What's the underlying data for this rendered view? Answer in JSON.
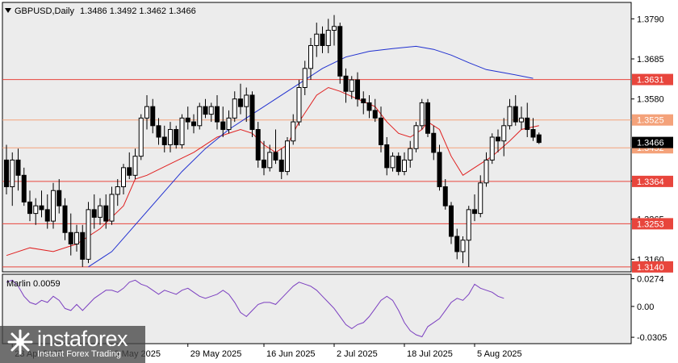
{
  "header": {
    "symbol": "GBPUSD,Daily",
    "ohlc": "1.3486 1.3492 1.3462 1.3466"
  },
  "indicator": {
    "label": "Marlin 0.0059"
  },
  "logo": {
    "name": "instaforex",
    "tagline": "Instant Forex Trading"
  },
  "colors": {
    "background": "#ffffff",
    "chart_bg": "#ececec",
    "candle": "#000000",
    "level_red": "#e8453c",
    "level_orange": "#f4a27a",
    "fast_ma": "#e02020",
    "slow_ma": "#2030d0",
    "oscillator": "#7b3fc0"
  },
  "chart_data": [
    {
      "type": "candlestick",
      "title": "GBPUSD,Daily",
      "ylim": [
        1.3127,
        1.3833
      ],
      "y_ticks": [
        {
          "value": 1.379,
          "label": "1.3790"
        },
        {
          "value": 1.3685,
          "label": "1.3685"
        },
        {
          "value": 1.358,
          "label": "1.3580"
        },
        {
          "value": 1.3365,
          "label": "1.3365"
        },
        {
          "value": 1.3265,
          "label": "1.3265"
        },
        {
          "value": 1.316,
          "label": "1.3160"
        }
      ],
      "x_ticks": [
        {
          "index": 1,
          "label": "23 Apr 2025"
        },
        {
          "index": 18,
          "label": "9 May 2025"
        },
        {
          "index": 31,
          "label": "29 May 2025"
        },
        {
          "index": 44,
          "label": "16 Jun 2025"
        },
        {
          "index": 56,
          "label": "2 Jul 2025"
        },
        {
          "index": 68,
          "label": "18 Jul 2025"
        },
        {
          "index": 80,
          "label": "5 Aug 2025"
        }
      ],
      "horizontal_levels": [
        {
          "value": 1.3631,
          "label": "1.3631",
          "color": "#e8453c"
        },
        {
          "value": 1.3525,
          "label": "1.3525",
          "color": "#f4a27a"
        },
        {
          "value": 1.3452,
          "label": "1.3452",
          "color": "#f4a27a"
        },
        {
          "value": 1.3364,
          "label": "1.3364",
          "color": "#e8453c"
        },
        {
          "value": 1.3253,
          "label": "1.3253",
          "color": "#e8453c"
        },
        {
          "value": 1.314,
          "label": "1.3140",
          "color": "#e8453c"
        }
      ],
      "current_price": {
        "value": 1.3466,
        "label": "1.3466"
      },
      "candles": [
        [
          1.342,
          1.346,
          1.333,
          1.335
        ],
        [
          1.335,
          1.344,
          1.33,
          1.342
        ],
        [
          1.342,
          1.345,
          1.334,
          1.338
        ],
        [
          1.338,
          1.34,
          1.33,
          1.331
        ],
        [
          1.331,
          1.334,
          1.326,
          1.328
        ],
        [
          1.328,
          1.332,
          1.325,
          1.33
        ],
        [
          1.33,
          1.334,
          1.327,
          1.329
        ],
        [
          1.329,
          1.333,
          1.324,
          1.326
        ],
        [
          1.326,
          1.336,
          1.324,
          1.334
        ],
        [
          1.334,
          1.337,
          1.328,
          1.33
        ],
        [
          1.33,
          1.332,
          1.321,
          1.323
        ],
        [
          1.323,
          1.328,
          1.317,
          1.32
        ],
        [
          1.32,
          1.325,
          1.318,
          1.323
        ],
        [
          1.323,
          1.325,
          1.314,
          1.316
        ],
        [
          1.316,
          1.331,
          1.315,
          1.329
        ],
        [
          1.329,
          1.333,
          1.324,
          1.327
        ],
        [
          1.327,
          1.332,
          1.325,
          1.33
        ],
        [
          1.33,
          1.333,
          1.324,
          1.326
        ],
        [
          1.326,
          1.335,
          1.325,
          1.333
        ],
        [
          1.333,
          1.337,
          1.33,
          1.335
        ],
        [
          1.335,
          1.341,
          1.333,
          1.34
        ],
        [
          1.34,
          1.344,
          1.337,
          1.338
        ],
        [
          1.338,
          1.345,
          1.337,
          1.343
        ],
        [
          1.343,
          1.354,
          1.342,
          1.353
        ],
        [
          1.353,
          1.359,
          1.35,
          1.356
        ],
        [
          1.356,
          1.358,
          1.349,
          1.351
        ],
        [
          1.351,
          1.353,
          1.346,
          1.348
        ],
        [
          1.348,
          1.351,
          1.344,
          1.346
        ],
        [
          1.346,
          1.352,
          1.344,
          1.35
        ],
        [
          1.35,
          1.351,
          1.345,
          1.346
        ],
        [
          1.346,
          1.354,
          1.345,
          1.353
        ],
        [
          1.353,
          1.356,
          1.35,
          1.352
        ],
        [
          1.352,
          1.354,
          1.349,
          1.351
        ],
        [
          1.351,
          1.357,
          1.35,
          1.356
        ],
        [
          1.356,
          1.358,
          1.353,
          1.354
        ],
        [
          1.354,
          1.357,
          1.352,
          1.356
        ],
        [
          1.356,
          1.359,
          1.35,
          1.352
        ],
        [
          1.352,
          1.356,
          1.348,
          1.35
        ],
        [
          1.35,
          1.355,
          1.349,
          1.353
        ],
        [
          1.353,
          1.36,
          1.352,
          1.358
        ],
        [
          1.358,
          1.362,
          1.354,
          1.356
        ],
        [
          1.356,
          1.361,
          1.352,
          1.359
        ],
        [
          1.359,
          1.36,
          1.348,
          1.35
        ],
        [
          1.35,
          1.352,
          1.34,
          1.342
        ],
        [
          1.342,
          1.347,
          1.338,
          1.34
        ],
        [
          1.34,
          1.346,
          1.339,
          1.344
        ],
        [
          1.344,
          1.35,
          1.341,
          1.342
        ],
        [
          1.342,
          1.345,
          1.337,
          1.339
        ],
        [
          1.339,
          1.348,
          1.338,
          1.347
        ],
        [
          1.347,
          1.354,
          1.346,
          1.352
        ],
        [
          1.352,
          1.363,
          1.351,
          1.361
        ],
        [
          1.361,
          1.368,
          1.359,
          1.366
        ],
        [
          1.366,
          1.374,
          1.363,
          1.372
        ],
        [
          1.372,
          1.378,
          1.369,
          1.375
        ],
        [
          1.375,
          1.377,
          1.37,
          1.372
        ],
        [
          1.372,
          1.379,
          1.37,
          1.376
        ],
        [
          1.376,
          1.38,
          1.372,
          1.377
        ],
        [
          1.377,
          1.378,
          1.362,
          1.364
        ],
        [
          1.364,
          1.366,
          1.357,
          1.36
        ],
        [
          1.36,
          1.364,
          1.358,
          1.363
        ],
        [
          1.363,
          1.365,
          1.356,
          1.358
        ],
        [
          1.358,
          1.36,
          1.354,
          1.357
        ],
        [
          1.357,
          1.359,
          1.353,
          1.355
        ],
        [
          1.355,
          1.358,
          1.352,
          1.353
        ],
        [
          1.353,
          1.356,
          1.344,
          1.346
        ],
        [
          1.346,
          1.348,
          1.338,
          1.34
        ],
        [
          1.34,
          1.344,
          1.339,
          1.343
        ],
        [
          1.343,
          1.344,
          1.338,
          1.339
        ],
        [
          1.339,
          1.344,
          1.338,
          1.342
        ],
        [
          1.342,
          1.347,
          1.34,
          1.345
        ],
        [
          1.345,
          1.352,
          1.344,
          1.351
        ],
        [
          1.351,
          1.358,
          1.35,
          1.357
        ],
        [
          1.357,
          1.358,
          1.348,
          1.349
        ],
        [
          1.349,
          1.351,
          1.342,
          1.344
        ],
        [
          1.344,
          1.346,
          1.334,
          1.335
        ],
        [
          1.335,
          1.337,
          1.329,
          1.33
        ],
        [
          1.33,
          1.331,
          1.32,
          1.322
        ],
        [
          1.322,
          1.324,
          1.316,
          1.318
        ],
        [
          1.318,
          1.322,
          1.315,
          1.321
        ],
        [
          1.321,
          1.33,
          1.314,
          1.329
        ],
        [
          1.329,
          1.333,
          1.326,
          1.328
        ],
        [
          1.328,
          1.338,
          1.327,
          1.336
        ],
        [
          1.336,
          1.344,
          1.335,
          1.342
        ],
        [
          1.342,
          1.349,
          1.341,
          1.348
        ],
        [
          1.348,
          1.35,
          1.344,
          1.347
        ],
        [
          1.347,
          1.353,
          1.343,
          1.351
        ],
        [
          1.351,
          1.358,
          1.35,
          1.356
        ],
        [
          1.356,
          1.359,
          1.351,
          1.352
        ],
        [
          1.352,
          1.356,
          1.35,
          1.353
        ],
        [
          1.353,
          1.357,
          1.348,
          1.35
        ],
        [
          1.35,
          1.353,
          1.347,
          1.348
        ],
        [
          1.3486,
          1.3492,
          1.3462,
          1.3466
        ]
      ],
      "moving_averages": [
        {
          "color": "#e02020",
          "points": [
            [
              0,
              1.317
            ],
            [
              4,
              1.319
            ],
            [
              8,
              1.318
            ],
            [
              12,
              1.32
            ],
            [
              16,
              1.324
            ],
            [
              20,
              1.33
            ],
            [
              22,
              1.337
            ],
            [
              24,
              1.338
            ],
            [
              28,
              1.341
            ],
            [
              32,
              1.344
            ],
            [
              36,
              1.348
            ],
            [
              40,
              1.35
            ],
            [
              42,
              1.349
            ],
            [
              44,
              1.346
            ],
            [
              46,
              1.344
            ],
            [
              48,
              1.346
            ],
            [
              50,
              1.352
            ],
            [
              53,
              1.359
            ],
            [
              55,
              1.361
            ],
            [
              57,
              1.36
            ],
            [
              60,
              1.358
            ],
            [
              63,
              1.356
            ],
            [
              65,
              1.352
            ],
            [
              67,
              1.349
            ],
            [
              69,
              1.348
            ],
            [
              71,
              1.35
            ],
            [
              72,
              1.352
            ],
            [
              74,
              1.35
            ],
            [
              76,
              1.343
            ],
            [
              78,
              1.338
            ],
            [
              80,
              1.34
            ],
            [
              83,
              1.343
            ],
            [
              86,
              1.347
            ],
            [
              88,
              1.35
            ],
            [
              91,
              1.351
            ]
          ]
        },
        {
          "color": "#2030d0",
          "points": [
            [
              14,
              1.314
            ],
            [
              18,
              1.318
            ],
            [
              22,
              1.325
            ],
            [
              26,
              1.332
            ],
            [
              30,
              1.339
            ],
            [
              34,
              1.345
            ],
            [
              38,
              1.35
            ],
            [
              42,
              1.354
            ],
            [
              46,
              1.358
            ],
            [
              50,
              1.362
            ],
            [
              54,
              1.366
            ],
            [
              58,
              1.369
            ],
            [
              62,
              1.3705
            ],
            [
              66,
              1.3712
            ],
            [
              70,
              1.3718
            ],
            [
              73,
              1.371
            ],
            [
              76,
              1.3695
            ],
            [
              79,
              1.3675
            ],
            [
              82,
              1.3657
            ],
            [
              86,
              1.3646
            ],
            [
              90,
              1.3634
            ]
          ]
        }
      ]
    },
    {
      "type": "line",
      "title": "Marlin 0.0059",
      "ylim": [
        -0.036,
        0.031
      ],
      "y_ticks": [
        {
          "value": 0.0274,
          "label": "0.0274"
        },
        {
          "value": 0.0,
          "label": "0.00"
        },
        {
          "value": -0.0305,
          "label": "-0.0305"
        }
      ],
      "series": [
        {
          "values": [
            0.024,
            0.026,
            0.02,
            0.01,
            0.004,
            0.002,
            0.006,
            0.004,
            0.01,
            0.006,
            -0.002,
            -0.004,
            0.002,
            -0.004,
            0.002,
            0.008,
            0.012,
            0.016,
            0.016,
            0.014,
            0.018,
            0.024,
            0.026,
            0.022,
            0.02,
            0.016,
            0.012,
            0.016,
            0.014,
            0.012,
            0.016,
            0.018,
            0.014,
            0.01,
            0.008,
            0.01,
            0.012,
            0.016,
            0.012,
            0.004,
            -0.006,
            -0.01,
            -0.004,
            0.002,
            0.004,
            0.004,
            0.002,
            0.008,
            0.014,
            0.02,
            0.024,
            0.022,
            0.02,
            0.016,
            0.01,
            0.004,
            -0.002,
            -0.01,
            -0.018,
            -0.022,
            -0.018,
            -0.016,
            -0.01,
            -0.002,
            0.006,
            0.01,
            0.006,
            -0.004,
            -0.016,
            -0.024,
            -0.028,
            -0.03,
            -0.02,
            -0.016,
            -0.012,
            -0.004,
            0.004,
            0.008,
            0.006,
            0.012,
            0.022,
            0.018,
            0.016,
            0.014,
            0.01,
            0.008
          ]
        }
      ]
    }
  ]
}
